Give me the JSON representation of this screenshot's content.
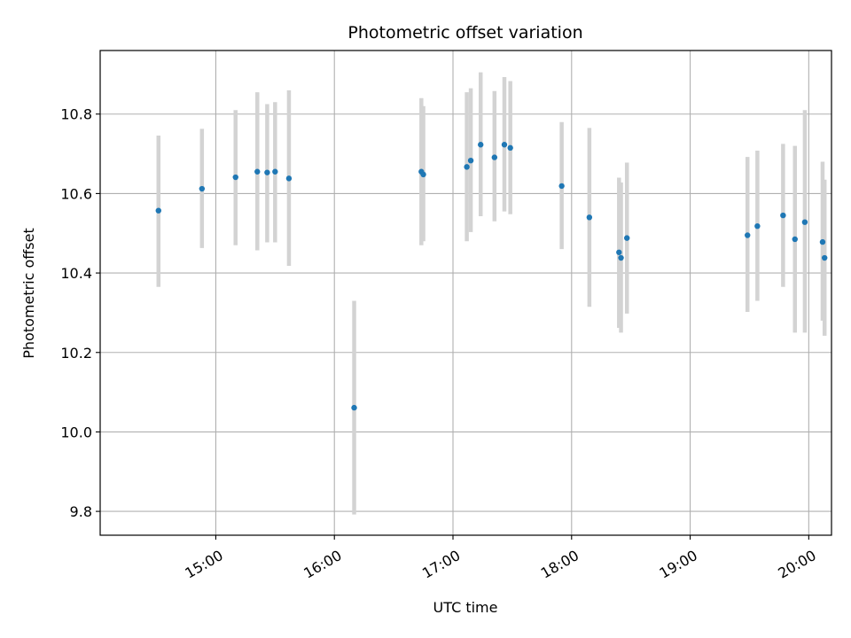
{
  "chart_data": {
    "type": "scatter",
    "title": "Photometric offset variation",
    "xlabel": "UTC time",
    "ylabel": "Photometric offset",
    "x_tick_labels": [
      "15:00",
      "16:00",
      "17:00",
      "18:00",
      "19:00",
      "20:00"
    ],
    "x_ticks_minutes": [
      900,
      960,
      1020,
      1080,
      1140,
      1200
    ],
    "y_tick_labels": [
      "9.8",
      "10.0",
      "10.2",
      "10.4",
      "10.6",
      "10.8"
    ],
    "y_ticks": [
      9.8,
      10.0,
      10.2,
      10.4,
      10.6,
      10.8
    ],
    "xlim_minutes": [
      841.5,
      1211.5
    ],
    "ylim": [
      9.74,
      10.96
    ],
    "grid": true,
    "marker_color": "#1f77b4",
    "errorbar_color": "#d3d3d3",
    "points": [
      {
        "t": "14:31",
        "y": 10.557,
        "low": 10.365,
        "high": 10.746
      },
      {
        "t": "14:53",
        "y": 10.612,
        "low": 10.463,
        "high": 10.763
      },
      {
        "t": "15:10",
        "y": 10.641,
        "low": 10.47,
        "high": 10.81
      },
      {
        "t": "15:21",
        "y": 10.655,
        "low": 10.457,
        "high": 10.855
      },
      {
        "t": "15:26",
        "y": 10.653,
        "low": 10.477,
        "high": 10.825
      },
      {
        "t": "15:30",
        "y": 10.655,
        "low": 10.477,
        "high": 10.83
      },
      {
        "t": "15:37",
        "y": 10.638,
        "low": 10.418,
        "high": 10.86
      },
      {
        "t": "16:10",
        "y": 10.061,
        "low": 9.792,
        "high": 10.33
      },
      {
        "t": "16:44",
        "y": 10.655,
        "low": 10.47,
        "high": 10.84
      },
      {
        "t": "16:45",
        "y": 10.648,
        "low": 10.48,
        "high": 10.82
      },
      {
        "t": "17:07",
        "y": 10.667,
        "low": 10.48,
        "high": 10.855
      },
      {
        "t": "17:09",
        "y": 10.683,
        "low": 10.503,
        "high": 10.865
      },
      {
        "t": "17:14",
        "y": 10.723,
        "low": 10.543,
        "high": 10.905
      },
      {
        "t": "17:21",
        "y": 10.691,
        "low": 10.53,
        "high": 10.858
      },
      {
        "t": "17:26",
        "y": 10.723,
        "low": 10.555,
        "high": 10.893
      },
      {
        "t": "17:29",
        "y": 10.715,
        "low": 10.548,
        "high": 10.883
      },
      {
        "t": "17:55",
        "y": 10.619,
        "low": 10.46,
        "high": 10.78
      },
      {
        "t": "18:09",
        "y": 10.54,
        "low": 10.315,
        "high": 10.765
      },
      {
        "t": "18:24",
        "y": 10.452,
        "low": 10.262,
        "high": 10.64
      },
      {
        "t": "18:25",
        "y": 10.438,
        "low": 10.25,
        "high": 10.628
      },
      {
        "t": "18:28",
        "y": 10.488,
        "low": 10.298,
        "high": 10.678
      },
      {
        "t": "19:29",
        "y": 10.495,
        "low": 10.302,
        "high": 10.692
      },
      {
        "t": "19:34",
        "y": 10.518,
        "low": 10.33,
        "high": 10.708
      },
      {
        "t": "19:47",
        "y": 10.545,
        "low": 10.365,
        "high": 10.725
      },
      {
        "t": "19:53",
        "y": 10.485,
        "low": 10.25,
        "high": 10.72
      },
      {
        "t": "19:58",
        "y": 10.528,
        "low": 10.25,
        "high": 10.81
      },
      {
        "t": "20:07",
        "y": 10.478,
        "low": 10.28,
        "high": 10.68
      },
      {
        "t": "20:08",
        "y": 10.438,
        "low": 10.242,
        "high": 10.635
      }
    ]
  }
}
